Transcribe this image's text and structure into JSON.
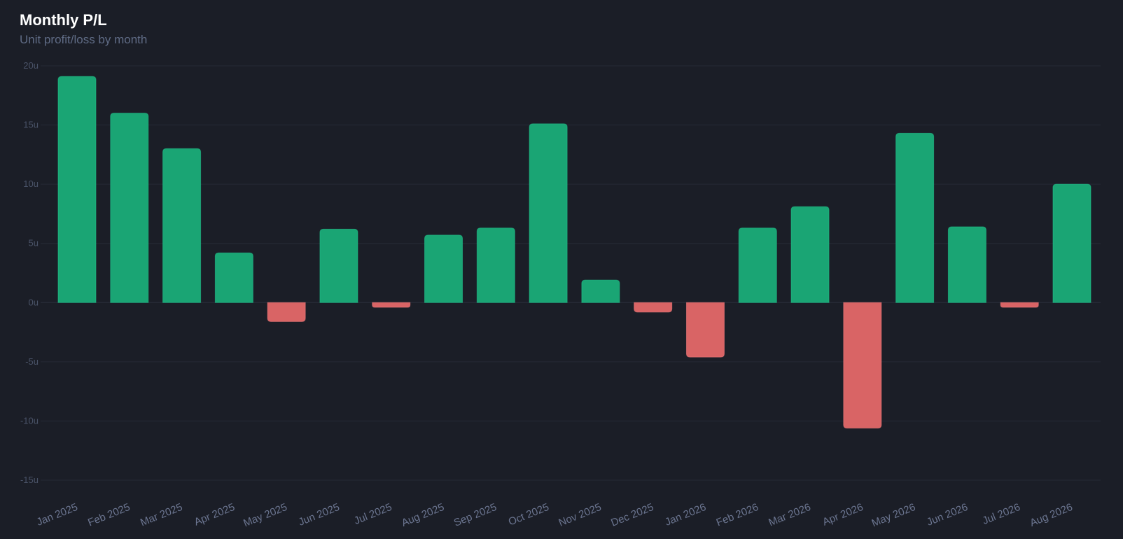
{
  "header": {
    "title": "Monthly P/L",
    "subtitle": "Unit profit/loss by month"
  },
  "colors": {
    "positive": "#1aa574",
    "negative": "#d96465",
    "grid": "#262a36",
    "background": "#1b1e27"
  },
  "chart_data": {
    "type": "bar",
    "title": "Monthly P/L",
    "subtitle": "Unit profit/loss by month",
    "xlabel": "",
    "ylabel": "",
    "ylim": [
      -15,
      20
    ],
    "yticks": [
      20,
      15,
      10,
      5,
      0,
      -5,
      -10,
      -15
    ],
    "ytick_labels": [
      "20u",
      "15u",
      "10u",
      "5u",
      "0u",
      "-5u",
      "-10u",
      "-15u"
    ],
    "grid": true,
    "legend": "none",
    "categories": [
      "Jan 2025",
      "Feb 2025",
      "Mar 2025",
      "Apr 2025",
      "May 2025",
      "Jun 2025",
      "Jul 2025",
      "Aug 2025",
      "Sep 2025",
      "Oct 2025",
      "Nov 2025",
      "Dec 2025",
      "Jan 2026",
      "Feb 2026",
      "Mar 2026",
      "Apr 2026",
      "May 2026",
      "Jun 2026",
      "Jul 2026",
      "Aug 2026"
    ],
    "values": [
      19.1,
      16.0,
      13.0,
      4.2,
      -1.6,
      6.2,
      -0.4,
      5.7,
      6.3,
      15.1,
      1.9,
      -0.8,
      -4.6,
      6.3,
      8.1,
      -10.6,
      14.3,
      6.4,
      -0.4,
      10.0
    ]
  }
}
